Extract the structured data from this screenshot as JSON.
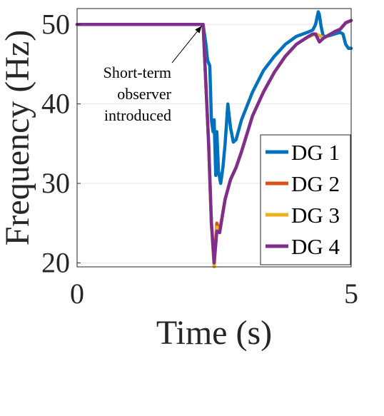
{
  "chart_data": {
    "type": "line",
    "xlabel": "Time (s)",
    "ylabel": "Frequency (Hz)",
    "xlim": [
      0,
      5
    ],
    "ylim": [
      19.5,
      52
    ],
    "x_ticks": [
      "0",
      "5"
    ],
    "y_ticks": [
      "20",
      "30",
      "40",
      "50"
    ],
    "grid": true,
    "legend_position": "bottom-right",
    "annotation": {
      "lines": [
        "Short-term",
        "observer",
        "introduced"
      ],
      "arrow_target": {
        "x": 2.3,
        "y": 50
      }
    },
    "series": [
      {
        "name": "DG 1",
        "color": "#0072BD",
        "x": [
          0,
          2.3,
          2.35,
          2.38,
          2.42,
          2.45,
          2.48,
          2.5,
          2.53,
          2.55,
          2.58,
          2.62,
          2.66,
          2.7,
          2.75,
          2.8,
          2.85,
          2.9,
          3.0,
          3.2,
          3.4,
          3.6,
          3.8,
          4.0,
          4.2,
          4.3,
          4.35,
          4.4,
          4.42,
          4.45,
          4.48,
          4.5,
          4.55,
          4.6,
          4.7,
          4.8,
          4.85,
          4.9,
          4.95,
          5.0
        ],
        "y": [
          50,
          50,
          47.5,
          45.5,
          44.8,
          38,
          36.5,
          38,
          31,
          36.5,
          31.5,
          30,
          32,
          35,
          40,
          37,
          35.2,
          35.5,
          38,
          41.5,
          44.2,
          46,
          47.5,
          48.5,
          49,
          49.3,
          50,
          51.6,
          51.2,
          49.8,
          48.8,
          48.5,
          48.5,
          48.6,
          48.8,
          49,
          48.8,
          47.5,
          47,
          47
        ]
      },
      {
        "name": "DG 2",
        "color": "#D95319",
        "x": [
          0,
          2.3,
          2.4,
          2.45,
          2.5,
          2.55,
          2.6,
          2.7,
          2.8,
          2.9,
          3.0,
          3.2,
          3.4,
          3.6,
          3.8,
          4.0,
          4.2,
          4.35,
          4.45,
          4.5,
          4.6,
          4.7,
          4.8,
          4.9,
          5.0
        ],
        "y": [
          50,
          50,
          35,
          25,
          20,
          25,
          24,
          28,
          30.5,
          32,
          34,
          38.5,
          41.5,
          44,
          46,
          47.5,
          48.4,
          48.8,
          48.5,
          48.3,
          48.7,
          49.1,
          49.4,
          50.2,
          50.5
        ]
      },
      {
        "name": "DG 3",
        "color": "#EDB120",
        "x": [
          0,
          2.3,
          2.4,
          2.45,
          2.5,
          2.55,
          2.6,
          2.7,
          2.8,
          2.9,
          3.0,
          3.2,
          3.4,
          3.6,
          3.8,
          4.0,
          4.2,
          4.35,
          4.45,
          4.5,
          4.6,
          4.7,
          4.8,
          4.9,
          5.0
        ],
        "y": [
          50,
          50,
          35,
          25,
          19.5,
          24.5,
          24,
          28,
          30.5,
          32,
          34,
          38.5,
          41.5,
          44,
          46,
          47.5,
          48.4,
          48.8,
          48.5,
          48.3,
          48.7,
          49.1,
          49.4,
          50.2,
          50.5
        ]
      },
      {
        "name": "DG 4",
        "color": "#7E2F8E",
        "x": [
          0,
          2.3,
          2.4,
          2.45,
          2.5,
          2.55,
          2.6,
          2.7,
          2.8,
          2.9,
          3.0,
          3.2,
          3.4,
          3.6,
          3.8,
          4.0,
          4.2,
          4.3,
          4.35,
          4.42,
          4.5,
          4.6,
          4.7,
          4.8,
          4.9,
          5.0
        ],
        "y": [
          50,
          50,
          35,
          25,
          20,
          24,
          23.8,
          28,
          30.5,
          32,
          34,
          38.5,
          41.5,
          44,
          46,
          47.5,
          48.4,
          48.8,
          48.8,
          47.8,
          48.3,
          48.7,
          49.1,
          49.4,
          50.2,
          50.5
        ]
      }
    ]
  }
}
